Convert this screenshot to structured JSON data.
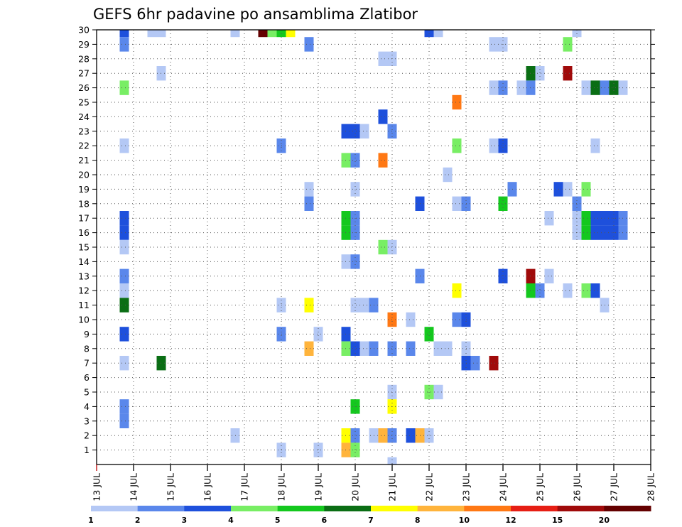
{
  "chart_data": {
    "type": "heatmap",
    "title": "GEFS 6hr padavine po ansamblima Zlatibor",
    "x_tick_labels": [
      "13 JUL",
      "14 JUL",
      "15 JUL",
      "16 JUL",
      "17 JUL",
      "18 JUL",
      "19 JUL",
      "20 JUL",
      "21 JUL",
      "22 JUL",
      "23 JUL",
      "24 JUL",
      "25 JUL",
      "26 JUL",
      "27 JUL",
      "28 JUL"
    ],
    "xlim": [
      13,
      28
    ],
    "y_tick_labels": [
      "1",
      "2",
      "3",
      "4",
      "5",
      "6",
      "7",
      "8",
      "9",
      "10",
      "11",
      "12",
      "13",
      "14",
      "15",
      "16",
      "17",
      "18",
      "19",
      "20",
      "21",
      "22",
      "23",
      "24",
      "25",
      "26",
      "27",
      "28",
      "29",
      "30"
    ],
    "ylim": [
      0,
      30
    ],
    "grid": true,
    "colorbar": {
      "placement": "bottom",
      "tick_labels": [
        "1",
        "2",
        "3",
        "4",
        "5",
        "6",
        "7",
        "8",
        "10",
        "12",
        "15",
        "20"
      ],
      "colors": [
        "#b4c8f5",
        "#5a87eb",
        "#1e50dc",
        "#78ee64",
        "#14c81e",
        "#0a6e14",
        "#ffff00",
        "#ffb43c",
        "#ff7814",
        "#e61e14",
        "#a00a0a",
        "#640000"
      ]
    },
    "cells": [
      {
        "day": 13.75,
        "member": 30,
        "level": 2
      },
      {
        "day": 14.5,
        "member": 30,
        "level": 0
      },
      {
        "day": 14.75,
        "member": 30,
        "level": 0
      },
      {
        "day": 16.75,
        "member": 30,
        "level": 0
      },
      {
        "day": 17.5,
        "member": 30,
        "level": 11
      },
      {
        "day": 17.75,
        "member": 30,
        "level": 3
      },
      {
        "day": 18.0,
        "member": 30,
        "level": 4
      },
      {
        "day": 18.25,
        "member": 30,
        "level": 6
      },
      {
        "day": 22.0,
        "member": 30,
        "level": 2
      },
      {
        "day": 22.25,
        "member": 30,
        "level": 0
      },
      {
        "day": 26.0,
        "member": 30,
        "level": 0
      },
      {
        "day": 13.75,
        "member": 29,
        "level": 1
      },
      {
        "day": 18.75,
        "member": 29,
        "level": 1
      },
      {
        "day": 23.75,
        "member": 29,
        "level": 0
      },
      {
        "day": 24.0,
        "member": 29,
        "level": 0
      },
      {
        "day": 25.75,
        "member": 29,
        "level": 3
      },
      {
        "day": 20.75,
        "member": 28,
        "level": 0
      },
      {
        "day": 21.0,
        "member": 28,
        "level": 0
      },
      {
        "day": 14.75,
        "member": 27,
        "level": 0
      },
      {
        "day": 24.75,
        "member": 27,
        "level": 5
      },
      {
        "day": 25.0,
        "member": 27,
        "level": 0
      },
      {
        "day": 25.75,
        "member": 27,
        "level": 10
      },
      {
        "day": 13.75,
        "member": 26,
        "level": 3
      },
      {
        "day": 23.75,
        "member": 26,
        "level": 0
      },
      {
        "day": 24.0,
        "member": 26,
        "level": 1
      },
      {
        "day": 24.5,
        "member": 26,
        "level": 0
      },
      {
        "day": 24.75,
        "member": 26,
        "level": 1
      },
      {
        "day": 26.25,
        "member": 26,
        "level": 0
      },
      {
        "day": 26.5,
        "member": 26,
        "level": 5
      },
      {
        "day": 26.75,
        "member": 26,
        "level": 1
      },
      {
        "day": 27.0,
        "member": 26,
        "level": 5
      },
      {
        "day": 27.25,
        "member": 26,
        "level": 0
      },
      {
        "day": 22.75,
        "member": 25,
        "level": 8
      },
      {
        "day": 20.75,
        "member": 24,
        "level": 2
      },
      {
        "day": 19.75,
        "member": 23,
        "level": 2
      },
      {
        "day": 20.0,
        "member": 23,
        "level": 2
      },
      {
        "day": 20.25,
        "member": 23,
        "level": 0
      },
      {
        "day": 21.0,
        "member": 23,
        "level": 1
      },
      {
        "day": 13.75,
        "member": 22,
        "level": 0
      },
      {
        "day": 18.0,
        "member": 22,
        "level": 1
      },
      {
        "day": 22.75,
        "member": 22,
        "level": 3
      },
      {
        "day": 23.75,
        "member": 22,
        "level": 0
      },
      {
        "day": 24.0,
        "member": 22,
        "level": 2
      },
      {
        "day": 26.5,
        "member": 22,
        "level": 0
      },
      {
        "day": 19.75,
        "member": 21,
        "level": 3
      },
      {
        "day": 20.0,
        "member": 21,
        "level": 1
      },
      {
        "day": 20.75,
        "member": 21,
        "level": 8
      },
      {
        "day": 22.5,
        "member": 20,
        "level": 0
      },
      {
        "day": 18.75,
        "member": 19,
        "level": 0
      },
      {
        "day": 20.0,
        "member": 19,
        "level": 0
      },
      {
        "day": 24.25,
        "member": 19,
        "level": 1
      },
      {
        "day": 25.5,
        "member": 19,
        "level": 2
      },
      {
        "day": 25.75,
        "member": 19,
        "level": 0
      },
      {
        "day": 26.25,
        "member": 19,
        "level": 3
      },
      {
        "day": 18.75,
        "member": 18,
        "level": 1
      },
      {
        "day": 21.75,
        "member": 18,
        "level": 2
      },
      {
        "day": 22.75,
        "member": 18,
        "level": 0
      },
      {
        "day": 23.0,
        "member": 18,
        "level": 1
      },
      {
        "day": 24.0,
        "member": 18,
        "level": 4
      },
      {
        "day": 26.0,
        "member": 18,
        "level": 1
      },
      {
        "day": 13.75,
        "member": 17,
        "level": 2
      },
      {
        "day": 19.75,
        "member": 17,
        "level": 4
      },
      {
        "day": 20.0,
        "member": 17,
        "level": 1
      },
      {
        "day": 25.25,
        "member": 17,
        "level": 0
      },
      {
        "day": 26.0,
        "member": 17,
        "level": 0
      },
      {
        "day": 26.25,
        "member": 17,
        "level": 4
      },
      {
        "day": 26.5,
        "member": 17,
        "level": 2
      },
      {
        "day": 26.75,
        "member": 17,
        "level": 2
      },
      {
        "day": 27.0,
        "member": 17,
        "level": 2
      },
      {
        "day": 27.25,
        "member": 17,
        "level": 1
      },
      {
        "day": 13.75,
        "member": 16,
        "level": 2
      },
      {
        "day": 19.75,
        "member": 16,
        "level": 4
      },
      {
        "day": 20.0,
        "member": 16,
        "level": 1
      },
      {
        "day": 26.0,
        "member": 16,
        "level": 0
      },
      {
        "day": 26.25,
        "member": 16,
        "level": 4
      },
      {
        "day": 26.5,
        "member": 16,
        "level": 2
      },
      {
        "day": 26.75,
        "member": 16,
        "level": 2
      },
      {
        "day": 27.0,
        "member": 16,
        "level": 2
      },
      {
        "day": 27.25,
        "member": 16,
        "level": 1
      },
      {
        "day": 13.75,
        "member": 15,
        "level": 0
      },
      {
        "day": 20.75,
        "member": 15,
        "level": 3
      },
      {
        "day": 21.0,
        "member": 15,
        "level": 0
      },
      {
        "day": 19.75,
        "member": 14,
        "level": 0
      },
      {
        "day": 20.0,
        "member": 14,
        "level": 1
      },
      {
        "day": 13.75,
        "member": 13,
        "level": 1
      },
      {
        "day": 21.75,
        "member": 13,
        "level": 1
      },
      {
        "day": 24.0,
        "member": 13,
        "level": 2
      },
      {
        "day": 24.75,
        "member": 13,
        "level": 10
      },
      {
        "day": 25.25,
        "member": 13,
        "level": 0
      },
      {
        "day": 13.75,
        "member": 12,
        "level": 0
      },
      {
        "day": 22.75,
        "member": 12,
        "level": 6
      },
      {
        "day": 24.75,
        "member": 12,
        "level": 4
      },
      {
        "day": 25.0,
        "member": 12,
        "level": 1
      },
      {
        "day": 25.75,
        "member": 12,
        "level": 0
      },
      {
        "day": 26.25,
        "member": 12,
        "level": 3
      },
      {
        "day": 26.5,
        "member": 12,
        "level": 2
      },
      {
        "day": 13.75,
        "member": 11,
        "level": 5
      },
      {
        "day": 18.0,
        "member": 11,
        "level": 0
      },
      {
        "day": 18.75,
        "member": 11,
        "level": 6
      },
      {
        "day": 20.0,
        "member": 11,
        "level": 0
      },
      {
        "day": 20.25,
        "member": 11,
        "level": 0
      },
      {
        "day": 20.5,
        "member": 11,
        "level": 1
      },
      {
        "day": 26.75,
        "member": 11,
        "level": 0
      },
      {
        "day": 21.0,
        "member": 10,
        "level": 8
      },
      {
        "day": 21.5,
        "member": 10,
        "level": 0
      },
      {
        "day": 22.75,
        "member": 10,
        "level": 1
      },
      {
        "day": 23.0,
        "member": 10,
        "level": 2
      },
      {
        "day": 13.75,
        "member": 9,
        "level": 2
      },
      {
        "day": 18.0,
        "member": 9,
        "level": 1
      },
      {
        "day": 19.0,
        "member": 9,
        "level": 0
      },
      {
        "day": 19.75,
        "member": 9,
        "level": 2
      },
      {
        "day": 22.0,
        "member": 9,
        "level": 4
      },
      {
        "day": 18.75,
        "member": 8,
        "level": 7
      },
      {
        "day": 19.75,
        "member": 8,
        "level": 3
      },
      {
        "day": 20.0,
        "member": 8,
        "level": 2
      },
      {
        "day": 20.25,
        "member": 8,
        "level": 0
      },
      {
        "day": 20.5,
        "member": 8,
        "level": 1
      },
      {
        "day": 21.0,
        "member": 8,
        "level": 1
      },
      {
        "day": 21.5,
        "member": 8,
        "level": 1
      },
      {
        "day": 22.25,
        "member": 8,
        "level": 0
      },
      {
        "day": 22.5,
        "member": 8,
        "level": 0
      },
      {
        "day": 23.0,
        "member": 8,
        "level": 0
      },
      {
        "day": 13.75,
        "member": 7,
        "level": 0
      },
      {
        "day": 14.75,
        "member": 7,
        "level": 5
      },
      {
        "day": 23.0,
        "member": 7,
        "level": 2
      },
      {
        "day": 23.25,
        "member": 7,
        "level": 1
      },
      {
        "day": 23.75,
        "member": 7,
        "level": 10
      },
      {
        "day": 21.0,
        "member": 5,
        "level": 0
      },
      {
        "day": 22.0,
        "member": 5,
        "level": 3
      },
      {
        "day": 22.25,
        "member": 5,
        "level": 0
      },
      {
        "day": 13.75,
        "member": 4,
        "level": 1
      },
      {
        "day": 20.0,
        "member": 4,
        "level": 4
      },
      {
        "day": 21.0,
        "member": 4,
        "level": 6
      },
      {
        "day": 13.75,
        "member": 3,
        "level": 1
      },
      {
        "day": 16.75,
        "member": 2,
        "level": 0
      },
      {
        "day": 19.75,
        "member": 2,
        "level": 6
      },
      {
        "day": 20.0,
        "member": 2,
        "level": 1
      },
      {
        "day": 20.5,
        "member": 2,
        "level": 0
      },
      {
        "day": 20.75,
        "member": 2,
        "level": 7
      },
      {
        "day": 21.0,
        "member": 2,
        "level": 1
      },
      {
        "day": 21.5,
        "member": 2,
        "level": 2
      },
      {
        "day": 21.75,
        "member": 2,
        "level": 7
      },
      {
        "day": 22.0,
        "member": 2,
        "level": 0
      },
      {
        "day": 18.0,
        "member": 1,
        "level": 0
      },
      {
        "day": 19.0,
        "member": 1,
        "level": 0
      },
      {
        "day": 19.75,
        "member": 1,
        "level": 7
      },
      {
        "day": 20.0,
        "member": 1,
        "level": 3
      },
      {
        "day": 21.0,
        "member": 0,
        "level": 0
      }
    ]
  }
}
